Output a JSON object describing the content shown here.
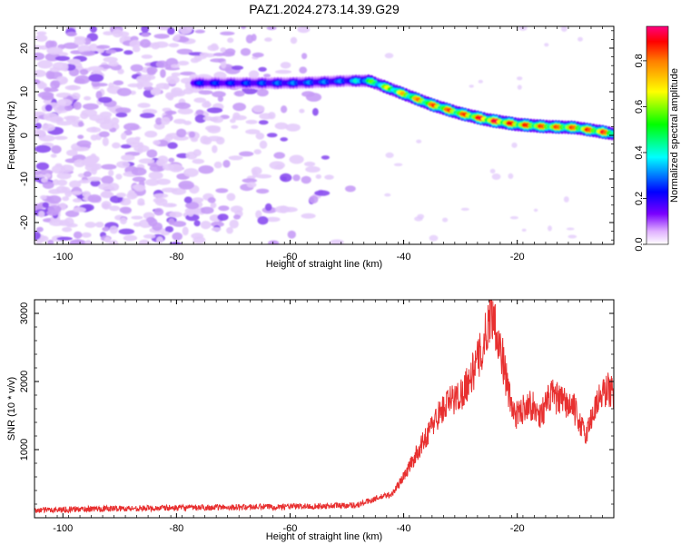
{
  "title": "PAZ1.2024.273.14.39.G29",
  "chart_data": [
    {
      "type": "heatmap",
      "xlabel": "Height of straight line (km)",
      "ylabel": "Frequency (Hz)",
      "xlim": [
        -105,
        -3
      ],
      "ylim": [
        -25,
        25
      ],
      "xticks": [
        -100,
        -80,
        -60,
        -40,
        -20
      ],
      "yticks": [
        -20,
        -10,
        0,
        10,
        20
      ],
      "colorbar": {
        "label": "Normalized spectral amplitude",
        "range": [
          0,
          0.95
        ],
        "ticks": [
          0.0,
          0.2,
          0.4,
          0.6,
          0.8
        ]
      },
      "ridge": {
        "x": [
          -77,
          -70,
          -60,
          -55,
          -50,
          -46,
          -40,
          -35,
          -30,
          -25,
          -20,
          -15,
          -10,
          -5,
          -3
        ],
        "y": [
          12,
          12,
          12,
          12.2,
          12.5,
          12.5,
          9.5,
          7,
          5,
          3.5,
          2.5,
          2,
          1.8,
          0.8,
          0.3
        ],
        "peak_amplitude": [
          0.25,
          0.25,
          0.3,
          0.3,
          0.3,
          0.55,
          0.75,
          0.85,
          0.85,
          0.95,
          0.9,
          0.85,
          0.85,
          0.9,
          0.8
        ]
      },
      "background_noise": {
        "x_range": [
          -105,
          -47
        ],
        "level": 0.1
      }
    },
    {
      "type": "line",
      "xlabel": "Height of straight line (km)",
      "ylabel": "SNR (10 * v/v)",
      "xlim": [
        -105,
        -3
      ],
      "ylim": [
        0,
        3200
      ],
      "xticks": [
        -100,
        -80,
        -60,
        -40,
        -20
      ],
      "yticks": [
        1000,
        2000,
        3000
      ],
      "series": [
        {
          "color": "#e83030",
          "x": [
            -105,
            -95,
            -85,
            -75,
            -65,
            -55,
            -48,
            -45,
            -42,
            -40,
            -38,
            -36,
            -34,
            -32,
            -30,
            -28,
            -26,
            -24.5,
            -23.5,
            -22.5,
            -21,
            -20,
            -18,
            -16,
            -14,
            -12,
            -10,
            -8,
            -6,
            -4,
            -3
          ],
          "y": [
            110,
            130,
            140,
            150,
            160,
            170,
            190,
            280,
            350,
            600,
            900,
            1200,
            1500,
            1700,
            1800,
            2100,
            2500,
            3100,
            2700,
            2300,
            1600,
            1500,
            1700,
            1500,
            1800,
            1700,
            1600,
            1200,
            1700,
            1900,
            1800
          ]
        }
      ]
    }
  ],
  "colors": {
    "line": "#e83030",
    "noise": "#8a4ef0"
  }
}
